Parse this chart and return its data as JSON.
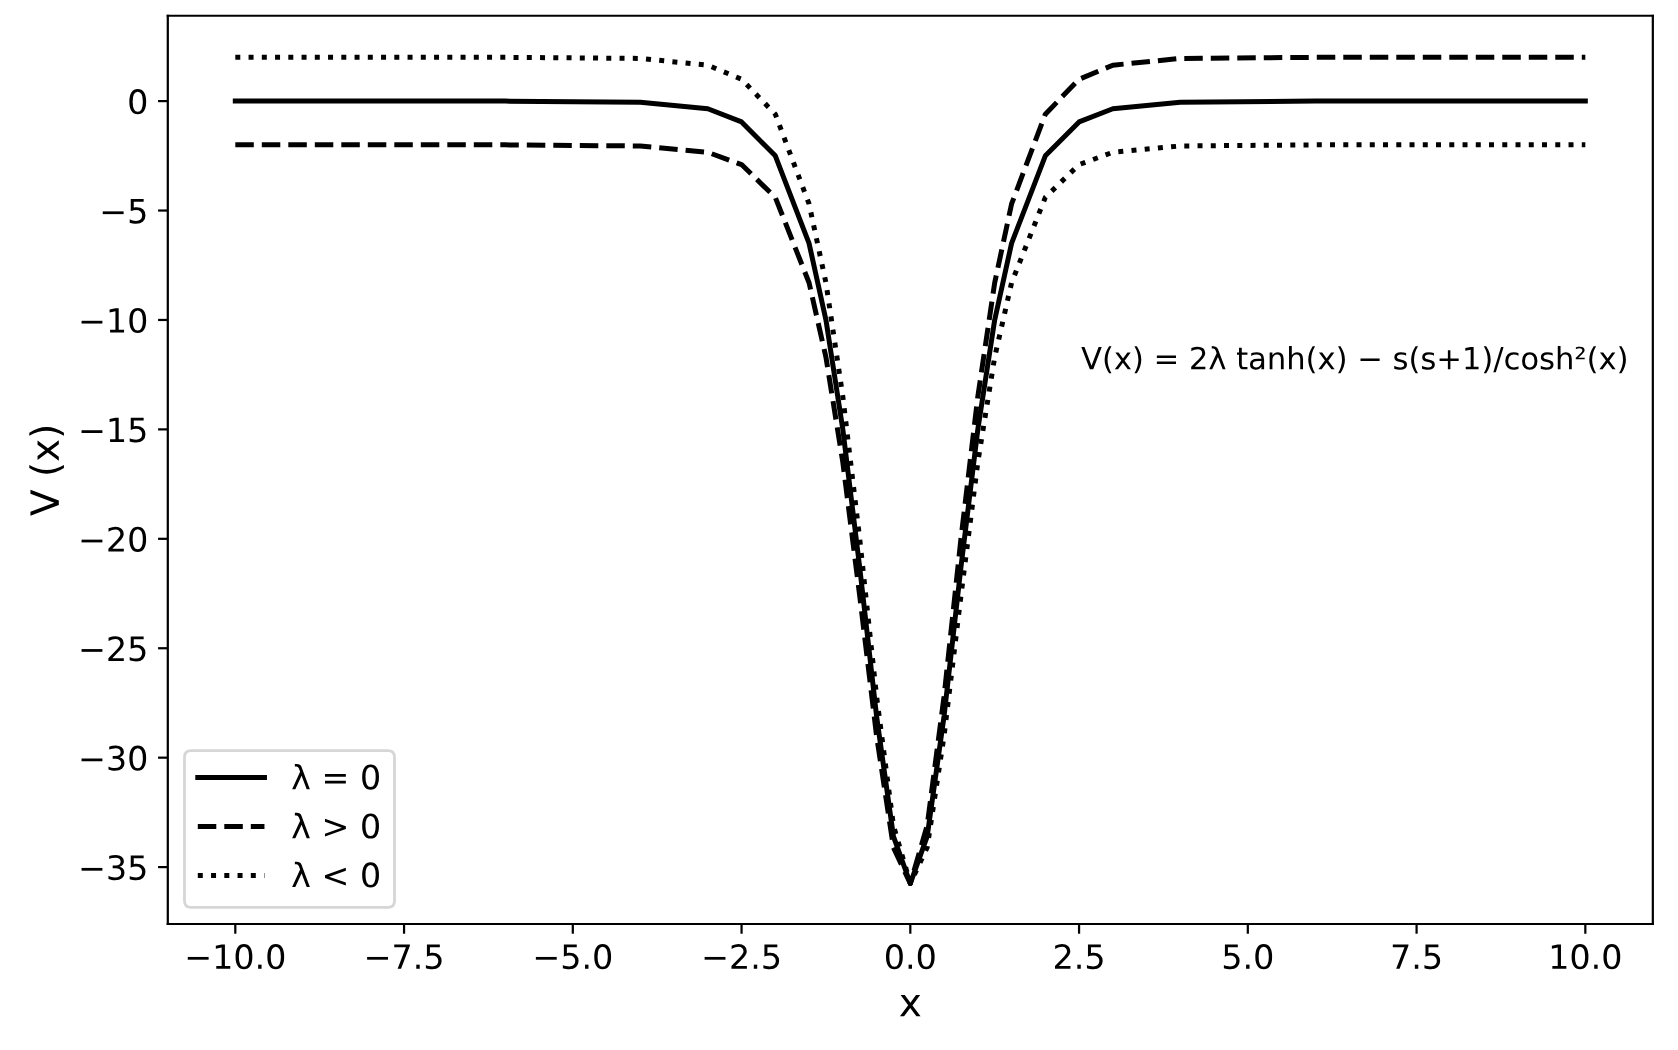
{
  "chart_data": {
    "type": "line",
    "xlabel": "x",
    "ylabel": "V (x)",
    "annotations": [
      "V(x) = 2λ tanh(x) − s(s+1)/cosh²(x)"
    ],
    "x": [
      -10,
      -6,
      -4,
      -3,
      -2.5,
      -2,
      -1.5,
      -1.25,
      -1,
      -0.75,
      -0.5,
      -0.25,
      0,
      0.25,
      0.5,
      0.75,
      1,
      1.25,
      1.5,
      2,
      2.5,
      3,
      4,
      6,
      10
    ],
    "series": [
      {
        "name": "λ = 0",
        "color": "#000000",
        "line_style": "solid",
        "values": [
          0,
          0,
          -0.05,
          -0.35,
          -0.95,
          -2.5,
          -6.5,
          -10.0,
          -15.0,
          -21.3,
          -28.1,
          -33.6,
          -35.75,
          -33.6,
          -28.1,
          -21.3,
          -15.0,
          -10.0,
          -6.5,
          -2.5,
          -0.95,
          -0.35,
          -0.05,
          0,
          0
        ]
      },
      {
        "name": "λ > 0",
        "color": "#000000",
        "line_style": "dashed",
        "values": [
          -2,
          -2,
          -2.05,
          -2.34,
          -2.9,
          -4.4,
          -8.3,
          -11.7,
          -16.5,
          -22.6,
          -29.0,
          -34.1,
          -35.75,
          -33.1,
          -27.2,
          -20.0,
          -13.5,
          -8.3,
          -4.7,
          -0.6,
          1.0,
          1.64,
          1.95,
          2,
          2
        ]
      },
      {
        "name": "λ < 0",
        "color": "#000000",
        "line_style": "dotted",
        "values": [
          2,
          2,
          1.95,
          1.64,
          1.0,
          -0.6,
          -4.7,
          -8.3,
          -13.5,
          -20.0,
          -27.2,
          -33.1,
          -35.75,
          -34.1,
          -29.0,
          -22.6,
          -16.5,
          -11.7,
          -8.3,
          -4.4,
          -2.9,
          -2.34,
          -2.05,
          -2,
          -2
        ]
      }
    ],
    "xlim": [
      -11,
      11
    ],
    "ylim": [
      -37.6,
      3.9
    ],
    "xticks": [
      {
        "value": -10,
        "label": "−10.0"
      },
      {
        "value": -7.5,
        "label": "−7.5"
      },
      {
        "value": -5,
        "label": "−5.0"
      },
      {
        "value": -2.5,
        "label": "−2.5"
      },
      {
        "value": 0,
        "label": "0.0"
      },
      {
        "value": 2.5,
        "label": "2.5"
      },
      {
        "value": 5,
        "label": "5.0"
      },
      {
        "value": 7.5,
        "label": "7.5"
      },
      {
        "value": 10,
        "label": "10.0"
      }
    ],
    "yticks": [
      {
        "value": -35,
        "label": "−35"
      },
      {
        "value": -30,
        "label": "−30"
      },
      {
        "value": -25,
        "label": "−25"
      },
      {
        "value": -20,
        "label": "−20"
      },
      {
        "value": -15,
        "label": "−15"
      },
      {
        "value": -10,
        "label": "−10"
      },
      {
        "value": -5,
        "label": "−5"
      },
      0
    ],
    "legend": "bottom left",
    "grid": false
  }
}
